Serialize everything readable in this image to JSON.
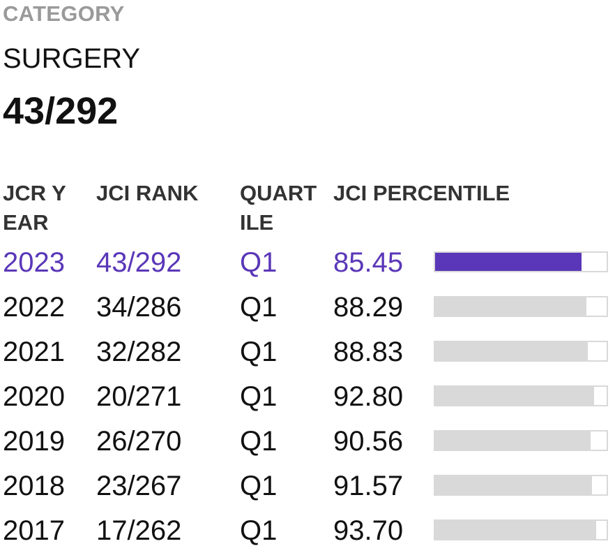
{
  "category_label": "CATEGORY",
  "category_name": "SURGERY",
  "category_rank": "43/292",
  "colors": {
    "accent": "#5a37b8",
    "bar_bg": "#d9d9d9",
    "label_gray": "#9a9a9a"
  },
  "table": {
    "headers": {
      "year": "JCR YEAR",
      "rank": "JCI RANK",
      "quartile": "QUARTILE",
      "percentile": "JCI PERCENTILE"
    },
    "rows": [
      {
        "year": "2023",
        "rank": "43/292",
        "quartile": "Q1",
        "percentile": "85.45",
        "current": true
      },
      {
        "year": "2022",
        "rank": "34/286",
        "quartile": "Q1",
        "percentile": "88.29",
        "current": false
      },
      {
        "year": "2021",
        "rank": "32/282",
        "quartile": "Q1",
        "percentile": "88.83",
        "current": false
      },
      {
        "year": "2020",
        "rank": "20/271",
        "quartile": "Q1",
        "percentile": "92.80",
        "current": false
      },
      {
        "year": "2019",
        "rank": "26/270",
        "quartile": "Q1",
        "percentile": "90.56",
        "current": false
      },
      {
        "year": "2018",
        "rank": "23/267",
        "quartile": "Q1",
        "percentile": "91.57",
        "current": false
      },
      {
        "year": "2017",
        "rank": "17/262",
        "quartile": "Q1",
        "percentile": "93.70",
        "current": false
      }
    ]
  }
}
